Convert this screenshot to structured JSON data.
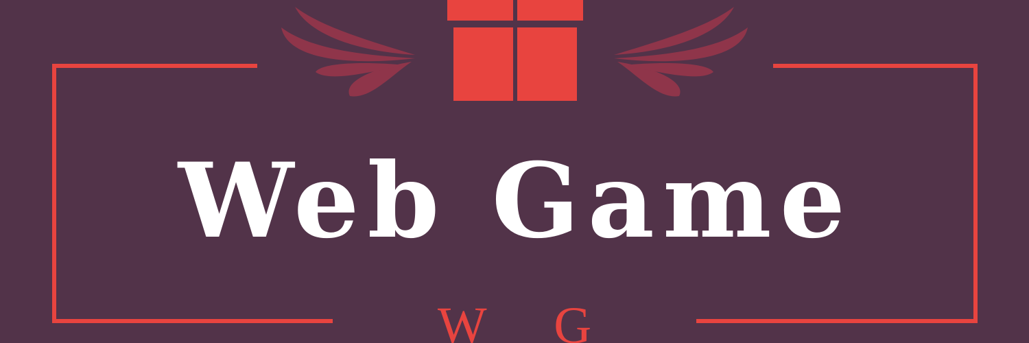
{
  "logo": {
    "title": "Web Game",
    "subtitle": "W G"
  }
}
